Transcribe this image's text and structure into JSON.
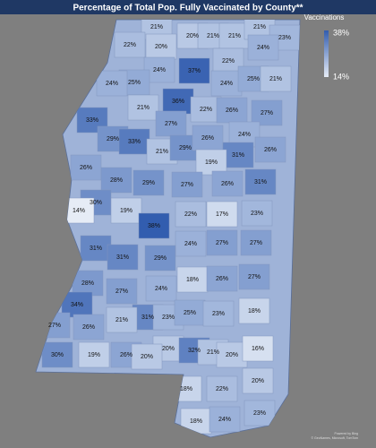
{
  "title": "Percentage of Total Pop. Fully Vaccinated by County**",
  "legend": {
    "title": "Vaccinations",
    "max": "38%",
    "min": "14%",
    "color_max": "#325daf",
    "color_min": "#e6ecf6"
  },
  "footer": [
    "Powered by Bing",
    "© GeoNames, Microsoft, TomTom"
  ],
  "regions": [
    {
      "label": "21%",
      "color": "#b1c3e2"
    },
    {
      "label": "20%",
      "color": "#b9c9e5"
    },
    {
      "label": "21%",
      "color": "#b1c3e2"
    },
    {
      "label": "21%",
      "color": "#b1c3e2"
    },
    {
      "label": "21%",
      "color": "#b1c3e2"
    },
    {
      "label": "23%",
      "color": "#a2b7dc"
    },
    {
      "label": "22%",
      "color": "#aabddf"
    },
    {
      "label": "20%",
      "color": "#b9c9e5"
    },
    {
      "label": "24%",
      "color": "#9bb1d9"
    },
    {
      "label": "22%",
      "color": "#aabddf"
    },
    {
      "label": "24%",
      "color": "#9bb1d9"
    },
    {
      "label": "37%",
      "color": "#3a63b2"
    },
    {
      "label": "25%",
      "color": "#93abd6"
    },
    {
      "label": "24%",
      "color": "#9bb1d9"
    },
    {
      "label": "24%",
      "color": "#9bb1d9"
    },
    {
      "label": "25%",
      "color": "#93abd6"
    },
    {
      "label": "21%",
      "color": "#b1c3e2"
    },
    {
      "label": "21%",
      "color": "#b1c3e2"
    },
    {
      "label": "36%",
      "color": "#4169b5"
    },
    {
      "label": "22%",
      "color": "#aabddf"
    },
    {
      "label": "26%",
      "color": "#8ca5d3"
    },
    {
      "label": "27%",
      "color": "#849fd0"
    },
    {
      "label": "33%",
      "color": "#577bbe"
    },
    {
      "label": "27%",
      "color": "#849fd0"
    },
    {
      "label": "29%",
      "color": "#7593ca"
    },
    {
      "label": "33%",
      "color": "#577bbe"
    },
    {
      "label": "21%",
      "color": "#b1c3e2"
    },
    {
      "label": "29%",
      "color": "#7593ca"
    },
    {
      "label": "26%",
      "color": "#8ca5d3"
    },
    {
      "label": "24%",
      "color": "#9bb1d9"
    },
    {
      "label": "31%",
      "color": "#6687c4"
    },
    {
      "label": "26%",
      "color": "#8ca5d3"
    },
    {
      "label": "19%",
      "color": "#c0cfe8"
    },
    {
      "label": "26%",
      "color": "#8ca5d3"
    },
    {
      "label": "28%",
      "color": "#7d99cd"
    },
    {
      "label": "29%",
      "color": "#7593ca"
    },
    {
      "label": "27%",
      "color": "#849fd0"
    },
    {
      "label": "26%",
      "color": "#8ca5d3"
    },
    {
      "label": "31%",
      "color": "#6687c4"
    },
    {
      "label": "30%",
      "color": "#6e8dc7"
    },
    {
      "label": "14%",
      "color": "#e6ecf6"
    },
    {
      "label": "19%",
      "color": "#c0cfe8"
    },
    {
      "label": "38%",
      "color": "#325daf"
    },
    {
      "label": "22%",
      "color": "#aabddf"
    },
    {
      "label": "17%",
      "color": "#cfdbee"
    },
    {
      "label": "23%",
      "color": "#a2b7dc"
    },
    {
      "label": "24%",
      "color": "#9bb1d9"
    },
    {
      "label": "27%",
      "color": "#849fd0"
    },
    {
      "label": "27%",
      "color": "#849fd0"
    },
    {
      "label": "31%",
      "color": "#6687c4"
    },
    {
      "label": "31%",
      "color": "#6687c4"
    },
    {
      "label": "29%",
      "color": "#7593ca"
    },
    {
      "label": "18%",
      "color": "#c8d5eb"
    },
    {
      "label": "26%",
      "color": "#8ca5d3"
    },
    {
      "label": "27%",
      "color": "#849fd0"
    },
    {
      "label": "28%",
      "color": "#7d99cd"
    },
    {
      "label": "27%",
      "color": "#849fd0"
    },
    {
      "label": "24%",
      "color": "#9bb1d9"
    },
    {
      "label": "34%",
      "color": "#5075bb"
    },
    {
      "label": "31%",
      "color": "#6687c4"
    },
    {
      "label": "23%",
      "color": "#a2b7dc"
    },
    {
      "label": "25%",
      "color": "#93abd6"
    },
    {
      "label": "23%",
      "color": "#a2b7dc"
    },
    {
      "label": "18%",
      "color": "#c8d5eb"
    },
    {
      "label": "27%",
      "color": "#849fd0"
    },
    {
      "label": "26%",
      "color": "#8ca5d3"
    },
    {
      "label": "21%",
      "color": "#b1c3e2"
    },
    {
      "label": "20%",
      "color": "#b9c9e5"
    },
    {
      "label": "32%",
      "color": "#5f81c1"
    },
    {
      "label": "21%",
      "color": "#b1c3e2"
    },
    {
      "label": "20%",
      "color": "#b9c9e5"
    },
    {
      "label": "16%",
      "color": "#d6e0f0"
    },
    {
      "label": "30%",
      "color": "#6e8dc7"
    },
    {
      "label": "19%",
      "color": "#c0cfe8"
    },
    {
      "label": "26%",
      "color": "#8ca5d3"
    },
    {
      "label": "20%",
      "color": "#b9c9e5"
    },
    {
      "label": "18%",
      "color": "#c8d5eb"
    },
    {
      "label": "22%",
      "color": "#aabddf"
    },
    {
      "label": "20%",
      "color": "#b9c9e5"
    },
    {
      "label": "18%",
      "color": "#c8d5eb"
    },
    {
      "label": "24%",
      "color": "#9bb1d9"
    },
    {
      "label": "23%",
      "color": "#a2b7dc"
    }
  ]
}
